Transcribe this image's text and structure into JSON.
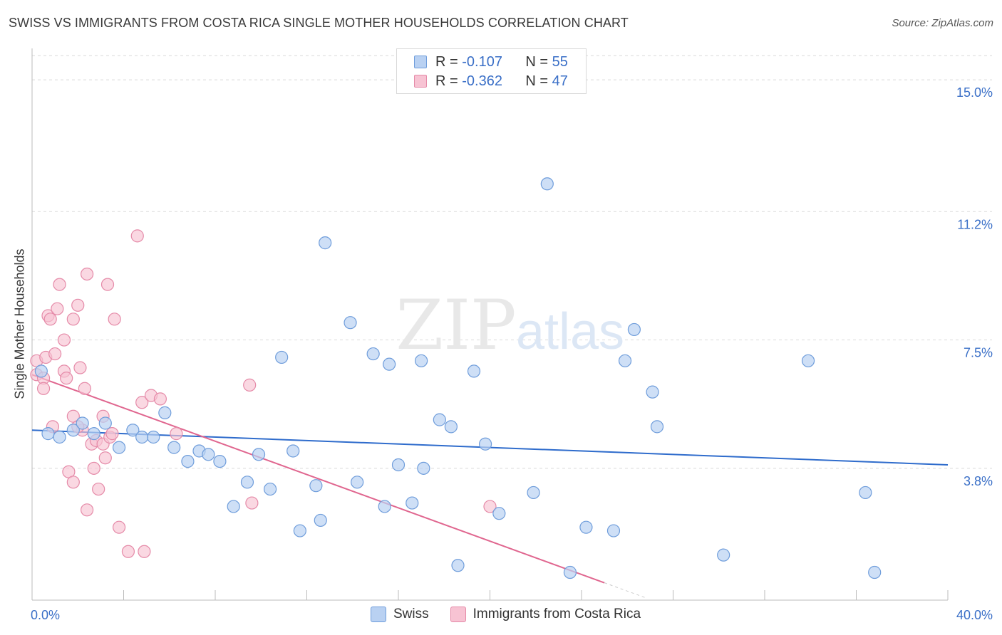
{
  "title": "SWISS VS IMMIGRANTS FROM COSTA RICA SINGLE MOTHER HOUSEHOLDS CORRELATION CHART",
  "source": "Source: ZipAtlas.com",
  "watermark": {
    "zip": "ZIP",
    "atlas": "atlas"
  },
  "legend": {
    "rows": [
      {
        "r_label": "R =",
        "r_value": "-0.107",
        "n_label": "N =",
        "n_value": "55"
      },
      {
        "r_label": "R =",
        "r_value": "-0.362",
        "n_label": "N =",
        "n_value": "47"
      }
    ]
  },
  "colors": {
    "swiss_fill": "#b9d1f2",
    "swiss_stroke": "#6f9ddb",
    "swiss_line": "#2f6ccc",
    "cr_fill": "#f7c3d3",
    "cr_stroke": "#e58aa8",
    "cr_line": "#e0668f",
    "tick_label": "#3a6fc7",
    "grid": "#d9d9d9"
  },
  "chart_data": {
    "type": "scatter",
    "title": "SWISS VS IMMIGRANTS FROM COSTA RICA SINGLE MOTHER HOUSEHOLDS CORRELATION CHART",
    "xlabel": "",
    "ylabel": "Single Mother Households",
    "xlim": [
      0,
      40
    ],
    "ylim": [
      0,
      15.7
    ],
    "x_tick_labels": [
      "0.0%",
      "40.0%"
    ],
    "y_ticks": [
      3.8,
      7.5,
      11.2,
      15.0
    ],
    "y_tick_labels": [
      "3.8%",
      "7.5%",
      "11.2%",
      "15.0%"
    ],
    "grid": true,
    "legend_position": "top-center",
    "series": [
      {
        "name": "Swiss",
        "trend": {
          "x": [
            0,
            40
          ],
          "y": [
            4.9,
            3.9
          ]
        },
        "points": [
          [
            0.4,
            6.6
          ],
          [
            0.7,
            4.8
          ],
          [
            1.2,
            4.7
          ],
          [
            1.8,
            4.9
          ],
          [
            2.2,
            5.1
          ],
          [
            2.7,
            4.8
          ],
          [
            3.2,
            5.1
          ],
          [
            3.8,
            4.4
          ],
          [
            4.4,
            4.9
          ],
          [
            4.8,
            4.7
          ],
          [
            5.3,
            4.7
          ],
          [
            5.8,
            5.4
          ],
          [
            6.2,
            4.4
          ],
          [
            6.8,
            4.0
          ],
          [
            7.3,
            4.3
          ],
          [
            7.7,
            4.2
          ],
          [
            8.2,
            4.0
          ],
          [
            8.8,
            2.7
          ],
          [
            9.4,
            3.4
          ],
          [
            9.9,
            4.2
          ],
          [
            10.4,
            3.2
          ],
          [
            10.9,
            7.0
          ],
          [
            11.4,
            4.3
          ],
          [
            11.7,
            2.0
          ],
          [
            12.4,
            3.3
          ],
          [
            12.6,
            2.3
          ],
          [
            12.8,
            10.3
          ],
          [
            13.9,
            8.0
          ],
          [
            14.2,
            3.4
          ],
          [
            14.9,
            7.1
          ],
          [
            15.4,
            2.7
          ],
          [
            15.6,
            6.8
          ],
          [
            16.0,
            3.9
          ],
          [
            16.6,
            2.8
          ],
          [
            17.0,
            6.9
          ],
          [
            17.1,
            3.8
          ],
          [
            17.8,
            5.2
          ],
          [
            18.3,
            5.0
          ],
          [
            18.6,
            1.0
          ],
          [
            19.3,
            6.6
          ],
          [
            19.8,
            4.5
          ],
          [
            20.4,
            2.5
          ],
          [
            21.9,
            3.1
          ],
          [
            22.5,
            12.0
          ],
          [
            23.5,
            0.8
          ],
          [
            24.2,
            2.1
          ],
          [
            25.4,
            2.0
          ],
          [
            25.9,
            6.9
          ],
          [
            26.3,
            7.8
          ],
          [
            27.1,
            6.0
          ],
          [
            27.3,
            5.0
          ],
          [
            30.2,
            1.3
          ],
          [
            33.9,
            6.9
          ],
          [
            36.4,
            3.1
          ],
          [
            36.8,
            0.8
          ]
        ]
      },
      {
        "name": "Immigrants from Costa Rica",
        "trend": {
          "x": [
            0,
            25
          ],
          "y": [
            6.5,
            0.5
          ]
        },
        "points": [
          [
            0.2,
            6.5
          ],
          [
            0.2,
            6.9
          ],
          [
            0.5,
            6.4
          ],
          [
            0.5,
            6.1
          ],
          [
            0.6,
            7.0
          ],
          [
            0.7,
            8.2
          ],
          [
            0.8,
            8.1
          ],
          [
            0.9,
            5.0
          ],
          [
            1.0,
            7.1
          ],
          [
            1.1,
            8.4
          ],
          [
            1.2,
            9.1
          ],
          [
            1.4,
            7.5
          ],
          [
            1.4,
            6.6
          ],
          [
            1.5,
            6.4
          ],
          [
            1.6,
            3.7
          ],
          [
            1.8,
            5.3
          ],
          [
            1.8,
            3.4
          ],
          [
            1.8,
            8.1
          ],
          [
            2.0,
            8.5
          ],
          [
            2.1,
            6.7
          ],
          [
            2.2,
            4.9
          ],
          [
            2.3,
            6.1
          ],
          [
            2.4,
            2.6
          ],
          [
            2.4,
            9.4
          ],
          [
            2.6,
            4.5
          ],
          [
            2.7,
            3.8
          ],
          [
            2.8,
            4.6
          ],
          [
            2.9,
            3.2
          ],
          [
            3.1,
            4.5
          ],
          [
            3.1,
            5.3
          ],
          [
            3.2,
            4.1
          ],
          [
            3.3,
            9.1
          ],
          [
            3.4,
            4.7
          ],
          [
            3.5,
            4.8
          ],
          [
            3.6,
            8.1
          ],
          [
            3.8,
            2.1
          ],
          [
            4.2,
            1.4
          ],
          [
            4.6,
            10.5
          ],
          [
            4.8,
            5.7
          ],
          [
            4.9,
            1.4
          ],
          [
            5.2,
            5.9
          ],
          [
            5.6,
            5.8
          ],
          [
            6.3,
            4.8
          ],
          [
            9.5,
            6.2
          ],
          [
            9.6,
            2.8
          ],
          [
            20.0,
            2.7
          ],
          [
            2.0,
            5.0
          ]
        ]
      }
    ]
  },
  "bottom_legend": [
    {
      "label": "Swiss"
    },
    {
      "label": "Immigrants from Costa Rica"
    }
  ]
}
